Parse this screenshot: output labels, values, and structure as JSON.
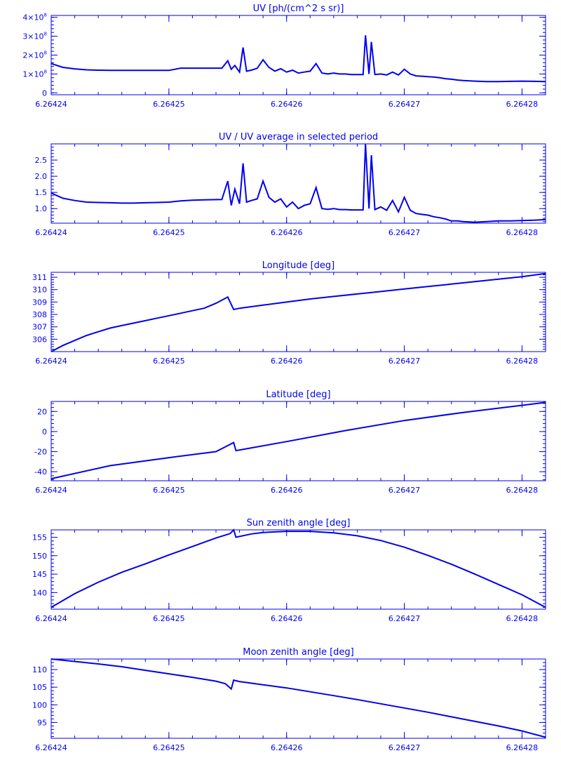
{
  "colors": {
    "line": "#0000ee",
    "background": "#ffffff"
  },
  "chart_data": [
    {
      "type": "line",
      "title": "UV [ph/(cm^2 s sr)]",
      "xlim": [
        6.26424,
        6.264282
      ],
      "ylim": [
        -10000000.0,
        410000000.0
      ],
      "yticks": [
        {
          "v": 0,
          "label": "0"
        },
        {
          "v": 100000000.0,
          "label": "1×10",
          "exp": "8"
        },
        {
          "v": 200000000.0,
          "label": "2×10",
          "exp": "8"
        },
        {
          "v": 300000000.0,
          "label": "3×10",
          "exp": "8"
        },
        {
          "v": 400000000.0,
          "label": "4×10",
          "exp": "8"
        }
      ],
      "xticks": [
        "6.26424",
        "6.26425",
        "6.26426",
        "6.26427",
        "6.26428"
      ],
      "x": [
        6.26424,
        6.264241,
        6.264242,
        6.264243,
        6.264244,
        6.264245,
        6.264246,
        6.264247,
        6.264248,
        6.264249,
        6.26425,
        6.264251,
        6.264252,
        6.264253,
        6.2642545,
        6.264255,
        6.2642553,
        6.2642556,
        6.264256,
        6.2642563,
        6.2642566,
        6.264257,
        6.2642575,
        6.264258,
        6.2642585,
        6.264259,
        6.2642595,
        6.26426,
        6.2642605,
        6.264261,
        6.2642615,
        6.264262,
        6.2642625,
        6.264263,
        6.2642635,
        6.264264,
        6.2642645,
        6.264265,
        6.2642655,
        6.264266,
        6.2642665,
        6.2642667,
        6.264267,
        6.2642672,
        6.2642675,
        6.264268,
        6.2642685,
        6.264269,
        6.2642695,
        6.26427,
        6.2642705,
        6.264271,
        6.2642715,
        6.264272,
        6.2642725,
        6.264273,
        6.2642735,
        6.264274,
        6.2642745,
        6.264275,
        6.264276,
        6.264277,
        6.264278,
        6.264279,
        6.26428,
        6.264281,
        6.264282
      ],
      "y": [
        155000000.0,
        135000000.0,
        127000000.0,
        122000000.0,
        120000000.0,
        119000000.0,
        119000000.0,
        119000000.0,
        119000000.0,
        119000000.0,
        119000000.0,
        131000000.0,
        131000000.0,
        131000000.0,
        131000000.0,
        170000000.0,
        125000000.0,
        145000000.0,
        110000000.0,
        240000000.0,
        115000000.0,
        120000000.0,
        130000000.0,
        175000000.0,
        135000000.0,
        115000000.0,
        128000000.0,
        110000000.0,
        120000000.0,
        105000000.0,
        110000000.0,
        115000000.0,
        155000000.0,
        105000000.0,
        100000000.0,
        105000000.0,
        100000000.0,
        100000000.0,
        97000000.0,
        97000000.0,
        97000000.0,
        305000000.0,
        100000000.0,
        270000000.0,
        97000000.0,
        100000000.0,
        95000000.0,
        110000000.0,
        95000000.0,
        125000000.0,
        100000000.0,
        90000000.0,
        88000000.0,
        86000000.0,
        84000000.0,
        80000000.0,
        75000000.0,
        72000000.0,
        68000000.0,
        65000000.0,
        62000000.0,
        60000000.0,
        60000000.0,
        61000000.0,
        62000000.0,
        61000000.0,
        60000000.0
      ]
    },
    {
      "type": "line",
      "title": "UV / UV average in selected period",
      "xlim": [
        6.26424,
        6.264282
      ],
      "ylim": [
        0.55,
        3.0
      ],
      "yticks": [
        {
          "v": 1.0,
          "label": "1.0"
        },
        {
          "v": 1.5,
          "label": "1.5"
        },
        {
          "v": 2.0,
          "label": "2.0"
        },
        {
          "v": 2.5,
          "label": "2.5"
        }
      ],
      "xticks": [
        "6.26424",
        "6.26425",
        "6.26426",
        "6.26427",
        "6.26428"
      ],
      "x": [
        6.26424,
        6.264241,
        6.264242,
        6.264243,
        6.264244,
        6.264245,
        6.264246,
        6.264247,
        6.264248,
        6.264249,
        6.26425,
        6.264251,
        6.264252,
        6.264253,
        6.2642545,
        6.264255,
        6.2642553,
        6.2642556,
        6.264256,
        6.2642563,
        6.2642566,
        6.264257,
        6.2642575,
        6.264258,
        6.2642585,
        6.264259,
        6.2642595,
        6.26426,
        6.2642605,
        6.264261,
        6.2642615,
        6.264262,
        6.2642625,
        6.264263,
        6.2642635,
        6.264264,
        6.2642645,
        6.264265,
        6.2642655,
        6.264266,
        6.2642665,
        6.2642667,
        6.264267,
        6.2642672,
        6.2642675,
        6.264268,
        6.2642685,
        6.264269,
        6.2642695,
        6.26427,
        6.2642705,
        6.264271,
        6.2642715,
        6.264272,
        6.2642725,
        6.264273,
        6.2642735,
        6.264274,
        6.2642745,
        6.264275,
        6.264276,
        6.264277,
        6.264278,
        6.264279,
        6.26428,
        6.264281,
        6.264282
      ],
      "y": [
        1.48,
        1.32,
        1.25,
        1.2,
        1.19,
        1.18,
        1.17,
        1.17,
        1.18,
        1.19,
        1.2,
        1.24,
        1.26,
        1.27,
        1.28,
        1.85,
        1.1,
        1.6,
        1.15,
        2.4,
        1.2,
        1.25,
        1.3,
        1.85,
        1.35,
        1.2,
        1.3,
        1.05,
        1.2,
        1.0,
        1.1,
        1.15,
        1.65,
        1.0,
        0.98,
        1.0,
        0.97,
        0.97,
        0.96,
        0.96,
        0.96,
        3.0,
        1.0,
        2.65,
        0.97,
        1.05,
        0.95,
        1.25,
        0.9,
        1.35,
        0.95,
        0.85,
        0.82,
        0.8,
        0.75,
        0.72,
        0.68,
        0.62,
        0.62,
        0.6,
        0.58,
        0.6,
        0.62,
        0.62,
        0.63,
        0.64,
        0.66
      ]
    },
    {
      "type": "line",
      "title": "Longitude [deg]",
      "xlim": [
        6.26424,
        6.264282
      ],
      "ylim": [
        305.0,
        311.4
      ],
      "yticks": [
        {
          "v": 306,
          "label": "306"
        },
        {
          "v": 307,
          "label": "307"
        },
        {
          "v": 308,
          "label": "308"
        },
        {
          "v": 309,
          "label": "309"
        },
        {
          "v": 310,
          "label": "310"
        },
        {
          "v": 311,
          "label": "311"
        }
      ],
      "xticks": [
        "6.26424",
        "6.26425",
        "6.26426",
        "6.26427",
        "6.26428"
      ],
      "x": [
        6.26424,
        6.264241,
        6.264242,
        6.264243,
        6.264244,
        6.264245,
        6.264246,
        6.264247,
        6.264248,
        6.264249,
        6.26425,
        6.264251,
        6.264252,
        6.264253,
        6.264254,
        6.264255,
        6.2642555,
        6.264256,
        6.264258,
        6.26426,
        6.264262,
        6.264264,
        6.264266,
        6.264268,
        6.26427,
        6.264272,
        6.264274,
        6.264276,
        6.264278,
        6.26428,
        6.264282
      ],
      "y": [
        305.0,
        305.5,
        305.9,
        306.3,
        306.6,
        306.9,
        307.1,
        307.3,
        307.5,
        307.7,
        307.9,
        308.1,
        308.3,
        308.5,
        308.9,
        309.4,
        308.4,
        308.5,
        308.75,
        309.0,
        309.25,
        309.45,
        309.65,
        309.85,
        310.05,
        310.25,
        310.45,
        310.65,
        310.85,
        311.05,
        311.3
      ]
    },
    {
      "type": "line",
      "title": "Latitude [deg]",
      "xlim": [
        6.26424,
        6.264282
      ],
      "ylim": [
        -49,
        30
      ],
      "yticks": [
        {
          "v": -40,
          "label": "-40"
        },
        {
          "v": -20,
          "label": "-20"
        },
        {
          "v": 0,
          "label": "0"
        },
        {
          "v": 20,
          "label": "20"
        }
      ],
      "xticks": [
        "6.26424",
        "6.26425",
        "6.26426",
        "6.26427",
        "6.26428"
      ],
      "x": [
        6.26424,
        6.264245,
        6.26425,
        6.264254,
        6.2642555,
        6.2642557,
        6.26426,
        6.264265,
        6.26427,
        6.264275,
        6.264282
      ],
      "y": [
        -47,
        -34,
        -26,
        -20,
        -11,
        -19,
        -10,
        1,
        11,
        19,
        29
      ]
    },
    {
      "type": "line",
      "title": "Sun zenith angle [deg]",
      "xlim": [
        6.26424,
        6.264282
      ],
      "ylim": [
        135.5,
        157
      ],
      "yticks": [
        {
          "v": 140,
          "label": "140"
        },
        {
          "v": 145,
          "label": "145"
        },
        {
          "v": 150,
          "label": "150"
        },
        {
          "v": 155,
          "label": "155"
        }
      ],
      "xticks": [
        "6.26424",
        "6.26425",
        "6.26426",
        "6.26427",
        "6.26428"
      ],
      "x": [
        6.26424,
        6.264242,
        6.264244,
        6.264246,
        6.264248,
        6.26425,
        6.264252,
        6.264254,
        6.2642552,
        6.2642555,
        6.2642557,
        6.264257,
        6.264258,
        6.26426,
        6.264262,
        6.264264,
        6.264266,
        6.264268,
        6.26427,
        6.264272,
        6.264274,
        6.264276,
        6.264278,
        6.26428,
        6.264282
      ],
      "y": [
        136,
        139.7,
        142.8,
        145.5,
        147.8,
        150.2,
        152.5,
        154.8,
        156.0,
        157.0,
        155.0,
        155.9,
        156.3,
        156.6,
        156.6,
        156.2,
        155.4,
        154.1,
        152.3,
        150.1,
        147.7,
        145.0,
        142.2,
        139.4,
        136
      ]
    },
    {
      "type": "line",
      "title": "Moon zenith angle [deg]",
      "xlim": [
        6.26424,
        6.264282
      ],
      "ylim": [
        90.5,
        113
      ],
      "yticks": [
        {
          "v": 95,
          "label": "95"
        },
        {
          "v": 100,
          "label": "100"
        },
        {
          "v": 105,
          "label": "105"
        },
        {
          "v": 110,
          "label": "110"
        }
      ],
      "xticks": [
        "6.26424",
        "6.26425",
        "6.26426",
        "6.26427",
        "6.26428"
      ],
      "x": [
        6.26424,
        6.264242,
        6.264244,
        6.264246,
        6.264248,
        6.26425,
        6.264252,
        6.264254,
        6.2642548,
        6.2642553,
        6.2642555,
        6.264256,
        6.264258,
        6.26426,
        6.264262,
        6.264264,
        6.264266,
        6.264268,
        6.26427,
        6.264272,
        6.264274,
        6.264276,
        6.264278,
        6.26428,
        6.264282
      ],
      "y": [
        113,
        112.3,
        111.6,
        110.8,
        109.8,
        108.8,
        107.8,
        106.7,
        106.0,
        104.5,
        107.0,
        106.6,
        105.7,
        104.8,
        103.7,
        102.6,
        101.5,
        100.3,
        99.1,
        97.9,
        96.6,
        95.3,
        94.0,
        92.6,
        90.8
      ]
    }
  ]
}
